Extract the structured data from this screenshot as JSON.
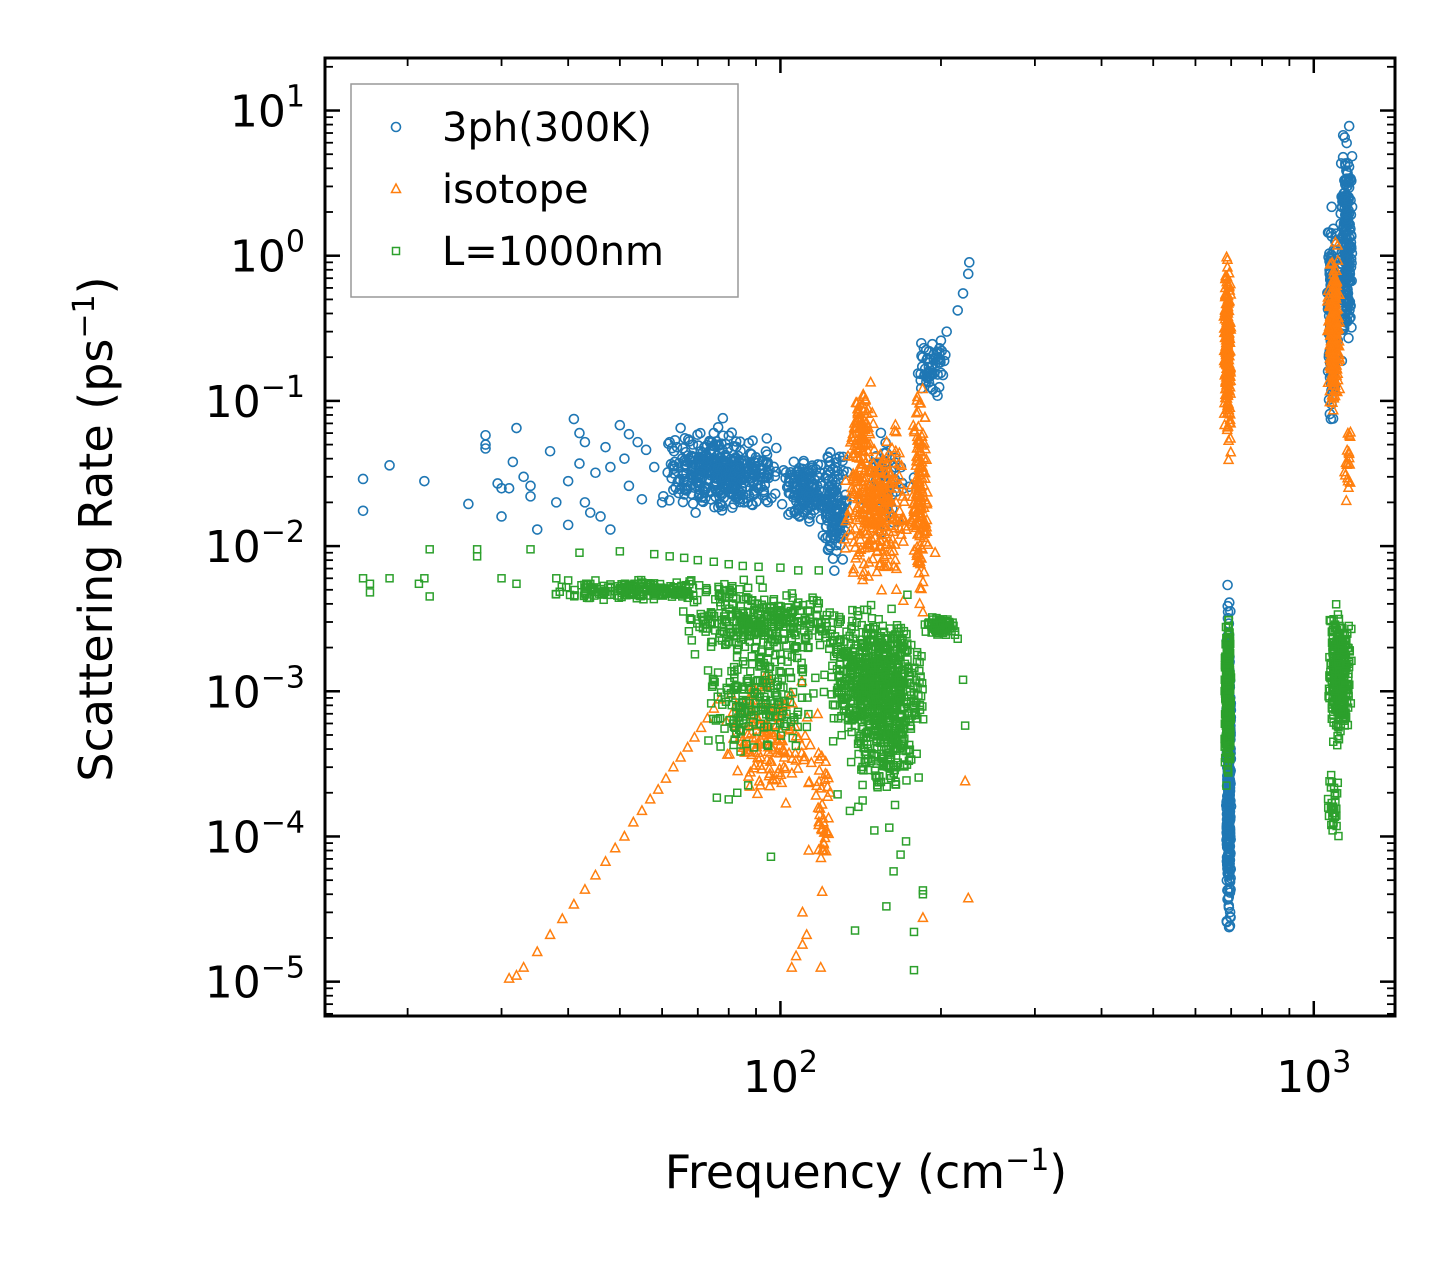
{
  "chart_data": {
    "type": "scatter",
    "xscale": "log",
    "yscale": "log",
    "xlim": [
      14,
      1420
    ],
    "ylim": [
      5.8e-06,
      23
    ],
    "x_ticks": [
      {
        "value": 100,
        "base": "10",
        "exp": "2"
      },
      {
        "value": 1000,
        "base": "10",
        "exp": "3"
      }
    ],
    "y_ticks": [
      {
        "value": 1e-05,
        "base": "10",
        "exp": "−5"
      },
      {
        "value": 0.0001,
        "base": "10",
        "exp": "−4"
      },
      {
        "value": 0.001,
        "base": "10",
        "exp": "−3"
      },
      {
        "value": 0.01,
        "base": "10",
        "exp": "−2"
      },
      {
        "value": 0.1,
        "base": "10",
        "exp": "−1"
      },
      {
        "value": 1,
        "base": "10",
        "exp": "0"
      },
      {
        "value": 10,
        "base": "10",
        "exp": "1"
      }
    ],
    "xlabel": {
      "main": "Frequency (cm",
      "sup": "−1",
      "end": ")"
    },
    "ylabel": {
      "main": "Scattering Rate (ps",
      "sup": "−1",
      "end": ")"
    },
    "legend_position": "top-left",
    "series": [
      {
        "name": "3ph(300K)",
        "marker": "circle",
        "color": "#1f77b4",
        "points": [
          [
            16.5,
            0.029
          ],
          [
            16.5,
            0.0175
          ],
          [
            18.5,
            0.036
          ],
          [
            21.5,
            0.028
          ],
          [
            26,
            0.0195
          ],
          [
            28,
            0.058
          ],
          [
            28,
            0.05
          ],
          [
            28,
            0.047
          ],
          [
            29.5,
            0.027
          ],
          [
            30,
            0.025
          ],
          [
            31,
            0.025
          ],
          [
            30,
            0.016
          ],
          [
            31.5,
            0.038
          ],
          [
            32,
            0.065
          ],
          [
            33,
            0.03
          ],
          [
            34,
            0.026
          ],
          [
            34,
            0.022
          ],
          [
            35,
            0.013
          ],
          [
            37,
            0.045
          ],
          [
            38,
            0.02
          ],
          [
            40,
            0.028
          ],
          [
            40,
            0.014
          ],
          [
            41,
            0.075
          ],
          [
            42,
            0.06
          ],
          [
            42,
            0.037
          ],
          [
            43,
            0.052
          ],
          [
            43,
            0.02
          ],
          [
            44,
            0.017
          ],
          [
            45,
            0.032
          ],
          [
            46,
            0.016
          ],
          [
            47,
            0.048
          ],
          [
            48,
            0.035
          ],
          [
            48,
            0.013
          ],
          [
            50,
            0.068
          ],
          [
            51,
            0.04
          ],
          [
            52,
            0.059
          ],
          [
            52,
            0.026
          ],
          [
            54,
            0.052
          ],
          [
            55,
            0.021
          ],
          [
            56,
            0.046
          ],
          [
            58,
            0.035
          ],
          [
            60,
            0.02
          ],
          [
            62,
            0.052
          ],
          [
            64,
            0.048
          ],
          [
            65,
            0.065
          ],
          [
            67,
            0.025
          ],
          [
            69,
            0.032
          ],
          [
            72,
            0.04
          ],
          [
            75,
            0.06
          ],
          [
            78,
            0.076
          ]
        ],
        "clusters": [
          {
            "x": [
              60,
              100
            ],
            "y": [
              0.015,
              0.07
            ],
            "n": 420
          },
          {
            "x": [
              100,
              122
            ],
            "y": [
              0.012,
              0.045
            ],
            "n": 150
          },
          {
            "x": [
              118,
              135
            ],
            "y": [
              0.006,
              0.06
            ],
            "n": 140
          },
          {
            "x": [
              140,
              180
            ],
            "y": [
              0.01,
              0.07
            ],
            "n": 60
          },
          {
            "x": [
              180,
              205
            ],
            "y": [
              0.1,
              0.3
            ],
            "n": 55
          },
          {
            "x": [
              685,
              700
            ],
            "y": [
              1.1e-05,
              0.0075
            ],
            "n": 380
          },
          {
            "x": [
              1060,
              1110
            ],
            "y": [
              0.05,
              3.0
            ],
            "n": 200
          },
          {
            "x": [
              1120,
              1185
            ],
            "y": [
              0.1,
              12
            ],
            "n": 220
          }
        ],
        "extra_points": [
          [
            190,
            0.22
          ],
          [
            200,
            0.26
          ],
          [
            205,
            0.3
          ],
          [
            215,
            0.42
          ],
          [
            220,
            0.55
          ],
          [
            225,
            0.75
          ],
          [
            226,
            0.9
          ]
        ]
      },
      {
        "name": "isotope",
        "marker": "triangle",
        "color": "#ff7f0e",
        "points": [
          [
            31,
            1.05e-05
          ],
          [
            32,
            1.1e-05
          ],
          [
            33,
            1.25e-05
          ],
          [
            35,
            1.6e-05
          ],
          [
            37,
            2.1e-05
          ],
          [
            39,
            2.7e-05
          ],
          [
            41,
            3.4e-05
          ],
          [
            43,
            4.3e-05
          ],
          [
            45,
            5.4e-05
          ],
          [
            47,
            6.7e-05
          ],
          [
            49,
            8.3e-05
          ],
          [
            51,
            0.0001
          ],
          [
            53,
            0.000125
          ],
          [
            55,
            0.00015
          ],
          [
            57,
            0.00018
          ],
          [
            59,
            0.00021
          ],
          [
            61,
            0.00025
          ],
          [
            63,
            0.0003
          ],
          [
            65,
            0.00035
          ],
          [
            67,
            0.00041
          ],
          [
            69,
            0.00048
          ],
          [
            71,
            0.00056
          ],
          [
            73,
            0.00065
          ],
          [
            75,
            0.00076
          ],
          [
            77,
            0.00088
          ],
          [
            105,
            1.25e-05
          ],
          [
            107,
            1.5e-05
          ],
          [
            110,
            1.8e-05
          ],
          [
            112,
            2.1e-05
          ],
          [
            110,
            3e-05
          ],
          [
            113,
            8e-05
          ],
          [
            118,
            0.00012
          ],
          [
            119,
            1.25e-05
          ],
          [
            185,
            2.75e-05
          ],
          [
            225,
            3.75e-05
          ],
          [
            222,
            0.00024
          ],
          [
            195,
            0.009
          ],
          [
            182,
            0.0065
          ],
          [
            170,
            0.0042
          ],
          [
            165,
            0.005
          ],
          [
            185,
            0.0035
          ]
        ],
        "clusters": [
          {
            "x": [
              78,
              118
            ],
            "y": [
              0.00015,
              0.0015
            ],
            "n": 160
          },
          {
            "x": [
              115,
              125
            ],
            "y": [
              3e-05,
              0.0009
            ],
            "n": 40
          },
          {
            "x": [
              130,
              175
            ],
            "y": [
              0.004,
              0.09
            ],
            "n": 300
          },
          {
            "x": [
              135,
              150
            ],
            "y": [
              0.03,
              0.16
            ],
            "n": 60
          },
          {
            "x": [
              175,
              190
            ],
            "y": [
              0.003,
              0.2
            ],
            "n": 140
          },
          {
            "x": [
              678,
              700
            ],
            "y": [
              0.035,
              1.5
            ],
            "n": 240
          },
          {
            "x": [
              1060,
              1120
            ],
            "y": [
              0.06,
              1.5
            ],
            "n": 220
          },
          {
            "x": [
              1130,
              1175
            ],
            "y": [
              0.015,
              0.1
            ],
            "n": 20
          }
        ],
        "extra_points": []
      },
      {
        "name": "L=1000nm",
        "marker": "square",
        "color": "#2ca02c",
        "points": [
          [
            16.5,
            0.006
          ],
          [
            17,
            0.0055
          ],
          [
            17,
            0.0048
          ],
          [
            18.5,
            0.006
          ],
          [
            21,
            0.0055
          ],
          [
            21.5,
            0.006
          ],
          [
            22,
            0.0045
          ],
          [
            22,
            0.0095
          ],
          [
            27,
            0.0095
          ],
          [
            27,
            0.0085
          ],
          [
            30,
            0.006
          ],
          [
            32,
            0.0055
          ],
          [
            34,
            0.0095
          ],
          [
            38,
            0.006
          ],
          [
            40,
            0.0058
          ],
          [
            42,
            0.009
          ],
          [
            45,
            0.0058
          ],
          [
            50,
            0.0092
          ],
          [
            55,
            0.0055
          ],
          [
            58,
            0.0088
          ],
          [
            62,
            0.0085
          ],
          [
            66,
            0.0083
          ],
          [
            70,
            0.008
          ],
          [
            75,
            0.0078
          ],
          [
            80,
            0.0075
          ],
          [
            85,
            0.0073
          ],
          [
            91,
            0.0072
          ],
          [
            100,
            0.0071
          ],
          [
            108,
            0.0068
          ],
          [
            118,
            0.0068
          ],
          [
            76,
            0.000185
          ],
          [
            80,
            0.00018
          ],
          [
            83,
            0.0002
          ],
          [
            87,
            0.000225
          ],
          [
            96,
            7.25e-05
          ],
          [
            128,
            0.000195
          ],
          [
            135,
            0.00015
          ],
          [
            140,
            0.00016
          ],
          [
            150,
            0.00011
          ],
          [
            160,
            0.000115
          ],
          [
            168,
            7.5e-05
          ],
          [
            172,
            9.25e-05
          ],
          [
            158,
            3.3e-05
          ],
          [
            138,
            2.25e-05
          ],
          [
            163,
            5.75e-05
          ],
          [
            178,
            2.2e-05
          ],
          [
            178,
            1.2e-05
          ],
          [
            185,
            4.25e-05
          ],
          [
            185,
            4e-05
          ],
          [
            220,
            0.0012
          ],
          [
            222,
            0.00058
          ],
          [
            215,
            0.0023
          ]
        ],
        "clusters": [
          {
            "x": [
              35,
              90
            ],
            "y": [
              0.004,
              0.0062
            ],
            "n": 200
          },
          {
            "x": [
              65,
              135
            ],
            "y": [
              0.0015,
              0.006
            ],
            "n": 300
          },
          {
            "x": [
              70,
              120
            ],
            "y": [
              0.0003,
              0.003
            ],
            "n": 200
          },
          {
            "x": [
              120,
              190
            ],
            "y": [
              0.0003,
              0.005
            ],
            "n": 600
          },
          {
            "x": [
              135,
              185
            ],
            "y": [
              0.00013,
              0.002
            ],
            "n": 220
          },
          {
            "x": [
              185,
              215
            ],
            "y": [
              0.0023,
              0.0035
            ],
            "n": 80
          },
          {
            "x": [
              680,
              700
            ],
            "y": [
              0.0002,
              0.004
            ],
            "n": 400
          },
          {
            "x": [
              1060,
              1180
            ],
            "y": [
              0.00035,
              0.005
            ],
            "n": 300
          },
          {
            "x": [
              1060,
              1130
            ],
            "y": [
              7e-05,
              0.00035
            ],
            "n": 30
          }
        ],
        "extra_points": []
      }
    ]
  }
}
